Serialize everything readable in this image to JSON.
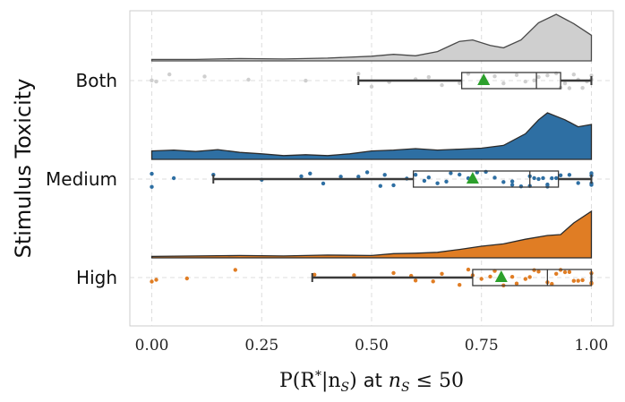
{
  "chart_data": {
    "type": "raincloud",
    "orientation": "horizontal",
    "ylabel": "Stimulus Toxicity",
    "xlabel": {
      "prefix": "P(R",
      "sup": "*",
      "mid": "|n",
      "sub1": "S",
      "suffix1": ") ",
      "at": "at",
      "n": " n",
      "sub2": "S",
      "tail": " ≤ 50"
    },
    "xlim": [
      -0.05,
      1.05
    ],
    "xticks": [
      0.0,
      0.25,
      0.5,
      0.75,
      1.0
    ],
    "xtick_labels": [
      "0.00",
      "0.25",
      "0.50",
      "0.75",
      "1.00"
    ],
    "grid": true,
    "categories": [
      "Both",
      "Medium",
      "High"
    ],
    "groups": [
      {
        "name": "Both",
        "color": "#cfcfcf",
        "edge": "#4a4a4a",
        "box": {
          "whisker_low": 0.47,
          "q1": 0.705,
          "median": 0.875,
          "q3": 0.93,
          "whisker_high": 1.0
        },
        "mean": 0.755,
        "density": [
          [
            0.0,
            0.03
          ],
          [
            0.1,
            0.03
          ],
          [
            0.2,
            0.05
          ],
          [
            0.3,
            0.04
          ],
          [
            0.4,
            0.06
          ],
          [
            0.5,
            0.1
          ],
          [
            0.55,
            0.14
          ],
          [
            0.6,
            0.11
          ],
          [
            0.65,
            0.2
          ],
          [
            0.7,
            0.42
          ],
          [
            0.73,
            0.45
          ],
          [
            0.77,
            0.33
          ],
          [
            0.8,
            0.28
          ],
          [
            0.84,
            0.45
          ],
          [
            0.88,
            0.82
          ],
          [
            0.92,
            1.0
          ],
          [
            0.96,
            0.8
          ],
          [
            1.0,
            0.55
          ]
        ],
        "points": [
          0.0,
          0.01,
          0.04,
          0.12,
          0.22,
          0.35,
          0.47,
          0.5,
          0.54,
          0.6,
          0.63,
          0.66,
          0.7,
          0.72,
          0.75,
          0.78,
          0.8,
          0.83,
          0.85,
          0.87,
          0.9,
          0.92,
          0.93,
          0.95,
          0.96,
          0.97,
          0.98,
          1.0,
          1.0,
          0.99,
          0.94,
          0.88
        ]
      },
      {
        "name": "Medium",
        "color": "#2e6fa3",
        "edge": "#2b2b2b",
        "box": {
          "whisker_low": 0.14,
          "q1": 0.595,
          "median": 0.86,
          "q3": 0.925,
          "whisker_high": 1.0
        },
        "mean": 0.73,
        "density": [
          [
            0.0,
            0.18
          ],
          [
            0.05,
            0.2
          ],
          [
            0.1,
            0.17
          ],
          [
            0.15,
            0.21
          ],
          [
            0.2,
            0.15
          ],
          [
            0.25,
            0.12
          ],
          [
            0.3,
            0.08
          ],
          [
            0.35,
            0.1
          ],
          [
            0.4,
            0.08
          ],
          [
            0.45,
            0.12
          ],
          [
            0.5,
            0.18
          ],
          [
            0.55,
            0.2
          ],
          [
            0.6,
            0.23
          ],
          [
            0.65,
            0.2
          ],
          [
            0.7,
            0.22
          ],
          [
            0.75,
            0.24
          ],
          [
            0.8,
            0.3
          ],
          [
            0.85,
            0.55
          ],
          [
            0.88,
            0.85
          ],
          [
            0.9,
            1.0
          ],
          [
            0.94,
            0.85
          ],
          [
            0.97,
            0.7
          ],
          [
            1.0,
            0.75
          ]
        ],
        "points": [
          0.0,
          0.0,
          0.05,
          0.14,
          0.25,
          0.34,
          0.36,
          0.39,
          0.43,
          0.47,
          0.49,
          0.52,
          0.53,
          0.55,
          0.58,
          0.6,
          0.62,
          0.63,
          0.65,
          0.67,
          0.68,
          0.7,
          0.72,
          0.74,
          0.76,
          0.78,
          0.8,
          0.82,
          0.84,
          0.86,
          0.87,
          0.88,
          0.89,
          0.9,
          0.91,
          0.92,
          0.93,
          0.95,
          0.97,
          1.0,
          1.0,
          1.0,
          1.0,
          0.9,
          0.86,
          0.82
        ]
      },
      {
        "name": "High",
        "color": "#e07d24",
        "edge": "#2b2b2b",
        "box": {
          "whisker_low": 0.365,
          "q1": 0.73,
          "median": 0.9,
          "q3": 1.0,
          "whisker_high": 1.0
        },
        "mean": 0.795,
        "density": [
          [
            0.0,
            0.03
          ],
          [
            0.1,
            0.04
          ],
          [
            0.2,
            0.05
          ],
          [
            0.3,
            0.04
          ],
          [
            0.4,
            0.06
          ],
          [
            0.5,
            0.05
          ],
          [
            0.55,
            0.09
          ],
          [
            0.6,
            0.1
          ],
          [
            0.65,
            0.12
          ],
          [
            0.7,
            0.18
          ],
          [
            0.75,
            0.25
          ],
          [
            0.8,
            0.3
          ],
          [
            0.85,
            0.4
          ],
          [
            0.9,
            0.48
          ],
          [
            0.93,
            0.5
          ],
          [
            0.96,
            0.75
          ],
          [
            1.0,
            1.0
          ]
        ],
        "points": [
          0.0,
          0.01,
          0.08,
          0.19,
          0.37,
          0.46,
          0.55,
          0.59,
          0.6,
          0.64,
          0.66,
          0.7,
          0.72,
          0.73,
          0.75,
          0.77,
          0.78,
          0.8,
          0.82,
          0.83,
          0.85,
          0.86,
          0.88,
          0.9,
          0.91,
          0.92,
          0.93,
          0.95,
          0.96,
          0.97,
          0.98,
          1.0,
          1.0,
          1.0,
          0.94,
          0.87
        ]
      }
    ]
  }
}
